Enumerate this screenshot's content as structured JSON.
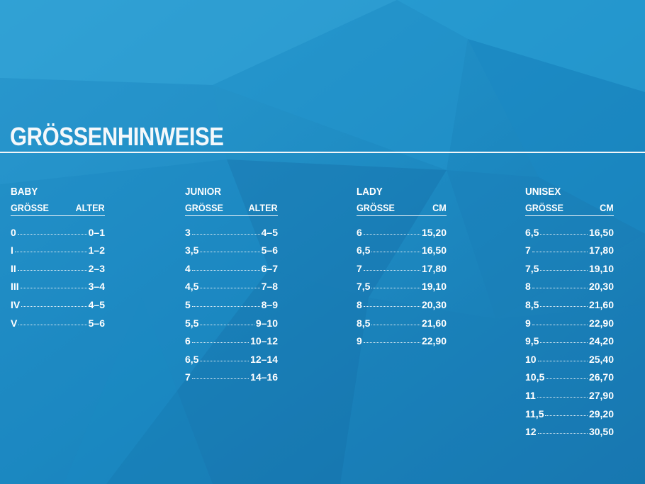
{
  "title": "GRÖSSENHINWEISE",
  "columns": [
    {
      "category": "BABY",
      "header_left": "GRÖSSE",
      "header_right": "ALTER",
      "rows": [
        {
          "size": "0",
          "value": "0–1"
        },
        {
          "size": "I",
          "value": "1–2"
        },
        {
          "size": "II",
          "value": "2–3"
        },
        {
          "size": "III",
          "value": "3–4"
        },
        {
          "size": "IV",
          "value": "4–5"
        },
        {
          "size": "V",
          "value": "5–6"
        }
      ]
    },
    {
      "category": "JUNIOR",
      "header_left": "GRÖSSE",
      "header_right": "ALTER",
      "rows": [
        {
          "size": "3",
          "value": "4–5"
        },
        {
          "size": "3,5",
          "value": "5–6"
        },
        {
          "size": "4",
          "value": "6–7"
        },
        {
          "size": "4,5",
          "value": "7–8"
        },
        {
          "size": "5",
          "value": "8–9"
        },
        {
          "size": "5,5",
          "value": "9–10"
        },
        {
          "size": "6",
          "value": "10–12"
        },
        {
          "size": "6,5",
          "value": "12–14"
        },
        {
          "size": "7",
          "value": "14–16"
        }
      ]
    },
    {
      "category": "LADY",
      "header_left": "GRÖSSE",
      "header_right": "CM",
      "rows": [
        {
          "size": "6",
          "value": "15,20"
        },
        {
          "size": "6,5",
          "value": "16,50"
        },
        {
          "size": "7",
          "value": "17,80"
        },
        {
          "size": "7,5",
          "value": "19,10"
        },
        {
          "size": "8",
          "value": "20,30"
        },
        {
          "size": "8,5",
          "value": "21,60"
        },
        {
          "size": "9",
          "value": "22,90"
        }
      ]
    },
    {
      "category": "UNISEX",
      "header_left": "GRÖSSE",
      "header_right": "CM",
      "rows": [
        {
          "size": "6,5",
          "value": "16,50"
        },
        {
          "size": "7",
          "value": "17,80"
        },
        {
          "size": "7,5",
          "value": "19,10"
        },
        {
          "size": "8",
          "value": "20,30"
        },
        {
          "size": "8,5",
          "value": "21,60"
        },
        {
          "size": "9",
          "value": "22,90"
        },
        {
          "size": "9,5",
          "value": "24,20"
        },
        {
          "size": "10",
          "value": "25,40"
        },
        {
          "size": "10,5",
          "value": "26,70"
        },
        {
          "size": "11",
          "value": "27,90"
        },
        {
          "size": "11,5",
          "value": "29,20"
        },
        {
          "size": "12",
          "value": "30,50"
        }
      ]
    }
  ]
}
